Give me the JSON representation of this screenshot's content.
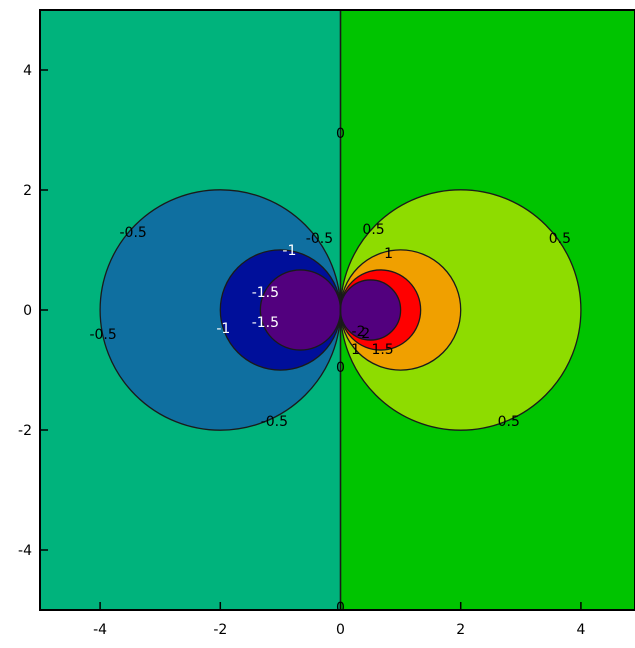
{
  "colors": {
    "background": "#ffffff",
    "axis": "#000000",
    "contour_line": "#1a1a1a"
  },
  "chart_data": {
    "type": "contour",
    "title": "",
    "xlabel": "",
    "ylabel": "",
    "xlim": [
      -5,
      4.9
    ],
    "ylim": [
      -5,
      5
    ],
    "grid": false,
    "legend": "none",
    "x_ticks": [
      {
        "value": -4,
        "label": "-4"
      },
      {
        "value": -2,
        "label": "-2"
      },
      {
        "value": 0,
        "label": "0"
      },
      {
        "value": 2,
        "label": "2"
      },
      {
        "value": 4,
        "label": "4"
      }
    ],
    "y_ticks": [
      {
        "value": 4,
        "label": "4"
      },
      {
        "value": 2,
        "label": "2"
      },
      {
        "value": 0,
        "label": "0"
      },
      {
        "value": -2,
        "label": "-2"
      },
      {
        "value": -4,
        "label": "-4"
      }
    ],
    "half_planes": [
      {
        "name": "left-half-plane",
        "side": "left",
        "level": "-0.5 < f < 0",
        "color": "#00b37c"
      },
      {
        "name": "right-half-plane",
        "side": "right",
        "level": "0 < f < 0.5",
        "color": "#00c400"
      }
    ],
    "zero_line": {
      "x": 0,
      "level": "0"
    },
    "bands": [
      {
        "name": "band-neg-0-5",
        "cx": -2,
        "cy": 0,
        "r": 2,
        "level": "-1 < f < -0.5",
        "color": "#0f6fa0"
      },
      {
        "name": "band-neg-1",
        "cx": -1,
        "cy": 0,
        "r": 1,
        "level": "-1.5 < f < -1",
        "color": "#000f9a"
      },
      {
        "name": "band-neg-1-5",
        "cx": -0.6667,
        "cy": 0,
        "r": 0.6667,
        "level": "f < -1.5",
        "color": "#52007e"
      },
      {
        "name": "band-pos-0-5",
        "cx": 2,
        "cy": 0,
        "r": 2,
        "level": "0.5 < f < 1",
        "color": "#8edc00"
      },
      {
        "name": "band-pos-1",
        "cx": 1,
        "cy": 0,
        "r": 1,
        "level": "1 < f < 1.5",
        "color": "#f0a000"
      },
      {
        "name": "band-pos-1-5",
        "cx": 0.6667,
        "cy": 0,
        "r": 0.6667,
        "level": "1.5 < f < 2",
        "color": "#ff0000"
      },
      {
        "name": "band-pos-2",
        "cx": 0.5,
        "cy": 0,
        "r": 0.5,
        "level": "f > 2",
        "color": "#52007e"
      }
    ],
    "contour_labels": [
      {
        "text": "0",
        "x": 0,
        "y": 2.95,
        "color": "#000000"
      },
      {
        "text": "0",
        "x": 0,
        "y": -0.95,
        "color": "#000000"
      },
      {
        "text": "0",
        "x": 0,
        "y": -4.95,
        "color": "#000000"
      },
      {
        "text": "-0.5",
        "x": -3.45,
        "y": 1.3,
        "color": "#000000"
      },
      {
        "text": "-0.5",
        "x": -3.95,
        "y": -0.4,
        "color": "#000000"
      },
      {
        "text": "-0.5",
        "x": -1.1,
        "y": -1.85,
        "color": "#000000"
      },
      {
        "text": "-0.5",
        "x": -0.35,
        "y": 1.2,
        "color": "#000000"
      },
      {
        "text": "0.5",
        "x": 0.55,
        "y": 1.35,
        "color": "#000000"
      },
      {
        "text": "0.5",
        "x": 3.65,
        "y": 1.2,
        "color": "#000000"
      },
      {
        "text": "0.5",
        "x": 2.8,
        "y": -1.85,
        "color": "#000000"
      },
      {
        "text": "-1",
        "x": -0.85,
        "y": 1.0,
        "color": "#ffffff"
      },
      {
        "text": "-1",
        "x": -1.95,
        "y": -0.3,
        "color": "#ffffff"
      },
      {
        "text": "1",
        "x": 0.8,
        "y": 0.95,
        "color": "#000000"
      },
      {
        "text": "1",
        "x": 0.25,
        "y": -0.65,
        "color": "#000000"
      },
      {
        "text": "-1.5",
        "x": -1.25,
        "y": 0.3,
        "color": "#ffffff"
      },
      {
        "text": "-1.5",
        "x": -1.25,
        "y": -0.2,
        "color": "#ffffff"
      },
      {
        "text": "1.5",
        "x": 0.7,
        "y": -0.65,
        "color": "#000000"
      },
      {
        "text": "-2",
        "x": 0.3,
        "y": -0.35,
        "color": "#000000"
      },
      {
        "text": "2",
        "x": 0.42,
        "y": -0.38,
        "color": "#000000"
      }
    ]
  }
}
